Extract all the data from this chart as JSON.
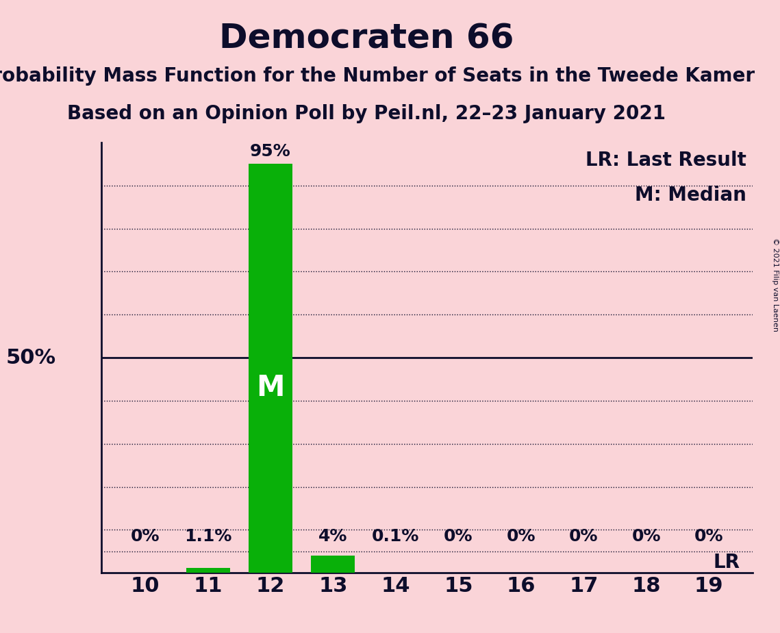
{
  "title": "Democraten 66",
  "subtitle1": "Probability Mass Function for the Number of Seats in the Tweede Kamer",
  "subtitle2": "Based on an Opinion Poll by Peil.nl, 22–23 January 2021",
  "copyright": "© 2021 Filip van Laenen",
  "seats": [
    10,
    11,
    12,
    13,
    14,
    15,
    16,
    17,
    18,
    19
  ],
  "probabilities": [
    0.0,
    1.1,
    95.0,
    4.0,
    0.1,
    0.0,
    0.0,
    0.0,
    0.0,
    0.0
  ],
  "bar_labels": [
    "0%",
    "1.1%",
    "95%",
    "4%",
    "0.1%",
    "0%",
    "0%",
    "0%",
    "0%",
    "0%"
  ],
  "bar_color": "#09B009",
  "background_color": "#FAD4D8",
  "text_color": "#0D0D2B",
  "median_seat": 12,
  "last_result_seat": 19,
  "legend_lr": "LR: Last Result",
  "legend_m": "M: Median",
  "ylim": [
    0,
    100
  ],
  "ylabel_50": "50%",
  "title_fontsize": 36,
  "subtitle_fontsize": 20,
  "bar_label_fontsize": 18,
  "tick_fontsize": 22,
  "ylabel_fontsize": 22,
  "legend_fontsize": 20,
  "median_label_fontsize": 30,
  "lr_label_fontsize": 20
}
